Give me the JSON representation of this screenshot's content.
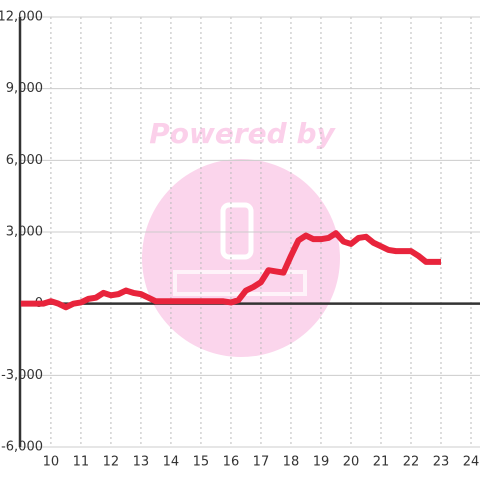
{
  "chart_data": {
    "type": "line",
    "watermark": "Powered by",
    "x": [
      9,
      9.25,
      9.5,
      9.75,
      10,
      10.25,
      10.5,
      10.75,
      11,
      11.25,
      11.5,
      11.75,
      12,
      12.25,
      12.5,
      12.75,
      13,
      13.25,
      13.5,
      13.75,
      14,
      14.25,
      14.5,
      14.75,
      15,
      15.25,
      15.5,
      15.75,
      16,
      16.25,
      16.5,
      16.75,
      17,
      17.25,
      17.5,
      17.75,
      18,
      18.25,
      18.5,
      18.75,
      19,
      19.25,
      19.5,
      19.75,
      20,
      20.25,
      20.5,
      20.75,
      21,
      21.25,
      21.5,
      21.75,
      22,
      22.25,
      22.5,
      22.75,
      23
    ],
    "values": [
      0,
      0,
      0,
      0,
      100,
      0,
      -150,
      0,
      50,
      200,
      250,
      450,
      350,
      400,
      550,
      450,
      400,
      250,
      100,
      100,
      100,
      100,
      100,
      100,
      100,
      100,
      100,
      100,
      50,
      150,
      550,
      700,
      900,
      1400,
      1350,
      1300,
      2000,
      2650,
      2850,
      2700,
      2700,
      2750,
      2950,
      2600,
      2500,
      2750,
      2800,
      2550,
      2400,
      2250,
      2200,
      2200,
      2200,
      2000,
      1750,
      1750,
      1750
    ],
    "color": "#e8243c",
    "xlim": [
      8.97,
      24.3
    ],
    "xticks": [
      10,
      11,
      12,
      13,
      14,
      15,
      16,
      17,
      18,
      19,
      20,
      21,
      22,
      23,
      24
    ],
    "ylim": [
      -6000,
      12000
    ],
    "yticks": [
      {
        "value": 12000,
        "label": "12,000"
      },
      {
        "value": 9000,
        "label": "9,000"
      },
      {
        "value": 6000,
        "label": "6,000"
      },
      {
        "value": 3000,
        "label": "3,000"
      },
      0,
      {
        "value": -3000,
        "label": "-3,000"
      },
      {
        "value": -6000,
        "label": "-6,000"
      }
    ],
    "grid": true
  }
}
